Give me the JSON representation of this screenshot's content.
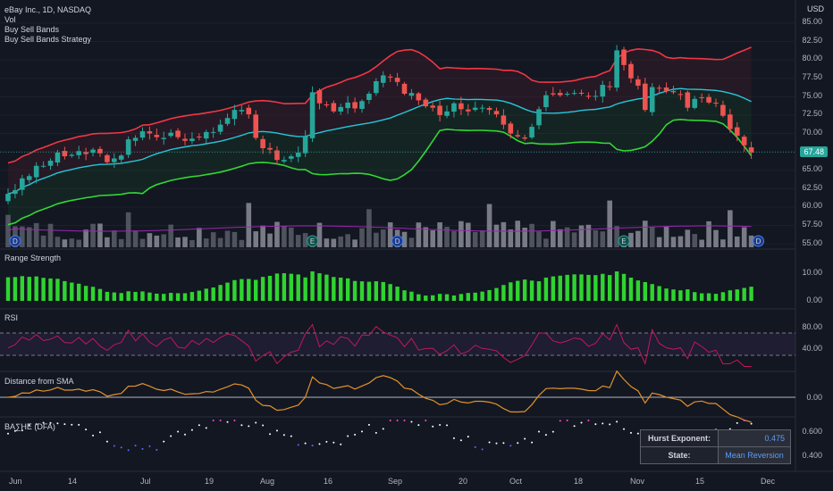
{
  "legend": {
    "symbol": "eBay Inc., 1D, NASDAQ",
    "vol": "Vol",
    "ind1": "Buy Sell Bands",
    "ind2": "Buy Sell Bands Strategy"
  },
  "currency": "USD",
  "price_tag": "67.48",
  "panes": {
    "range_strength": "Range Strength",
    "rsi": "RSI",
    "dist": "Distance from SMA",
    "hurst": "BA∑HE (DFA)"
  },
  "hurst_table": {
    "exp_key": "Hurst Exponent:",
    "exp_val": "0.475",
    "state_key": "State:",
    "state_val": "Mean Reversion"
  },
  "colors": {
    "up": "#26a69a",
    "down": "#ef5350",
    "upper_band": "#f23645",
    "mid_band": "#26c6da",
    "lower_band": "#31d832",
    "rsi": "#c2185b",
    "dist": "#e0922b",
    "strength": "#2fd42f"
  },
  "event_markers": [
    "D",
    "E",
    "D",
    "E",
    "D"
  ],
  "chart_data": [
    {
      "type": "candlestick",
      "title": "eBay Inc., 1D, NASDAQ",
      "ylim": [
        54,
        86
      ],
      "y_ticks": [
        "85.00",
        "82.50",
        "80.00",
        "77.50",
        "75.00",
        "72.50",
        "70.00",
        "67.50",
        "65.00",
        "62.50",
        "60.00",
        "57.50",
        "55.00"
      ],
      "x_ticks": [
        "Jun",
        "14",
        "Jul",
        "19",
        "Aug",
        "16",
        "Sep",
        "20",
        "Oct",
        "18",
        "Nov",
        "15",
        "Dec"
      ],
      "close": [
        61.8,
        62.3,
        63.9,
        64.2,
        65.6,
        65.6,
        66.3,
        67.4,
        66.9,
        67.1,
        67.6,
        67.2,
        67.8,
        67.3,
        66.1,
        66.6,
        67.0,
        69.2,
        69.4,
        70.3,
        70.0,
        69.5,
        69.4,
        70.1,
        69.5,
        69.0,
        69.3,
        69.5,
        70.2,
        70.2,
        71.2,
        72.1,
        73.2,
        73.2,
        72.6,
        69.4,
        68.0,
        67.8,
        66.4,
        66.4,
        66.9,
        67.4,
        69.6,
        75.6,
        74.1,
        73.9,
        73.0,
        73.6,
        74.2,
        73.4,
        74.4,
        75.4,
        77.1,
        77.9,
        77.6,
        77.0,
        75.4,
        75.5,
        74.5,
        73.7,
        73.5,
        72.5,
        73.0,
        74.1,
        73.3,
        73.0,
        73.5,
        73.5,
        73.2,
        72.6,
        71.2,
        70.0,
        69.6,
        69.3,
        70.9,
        73.3,
        75.2,
        75.3,
        75.2,
        75.4,
        75.5,
        75.4,
        75.1,
        75.1,
        76.6,
        76.3,
        81.3,
        79.3,
        77.5,
        76.5,
        73.2,
        76.3,
        76.2,
        75.8,
        75.6,
        75.3,
        73.5,
        74.7,
        74.9,
        74.2,
        74.1,
        72.4,
        70.6,
        69.7,
        68.4,
        67.4
      ],
      "overlays": [
        "upper band",
        "middle band",
        "lower band"
      ]
    },
    {
      "type": "bar",
      "title": "Range Strength",
      "y_ticks": [
        "10.00",
        "0.00"
      ]
    },
    {
      "type": "line",
      "title": "RSI",
      "y_ticks": [
        "80.00",
        "40.00"
      ]
    },
    {
      "type": "line",
      "title": "Distance from SMA",
      "y_ticks": [
        "0.00"
      ]
    },
    {
      "type": "scatter",
      "title": "BA∑HE (DFA)",
      "y_ticks": [
        "0.600",
        "0.400"
      ]
    }
  ]
}
